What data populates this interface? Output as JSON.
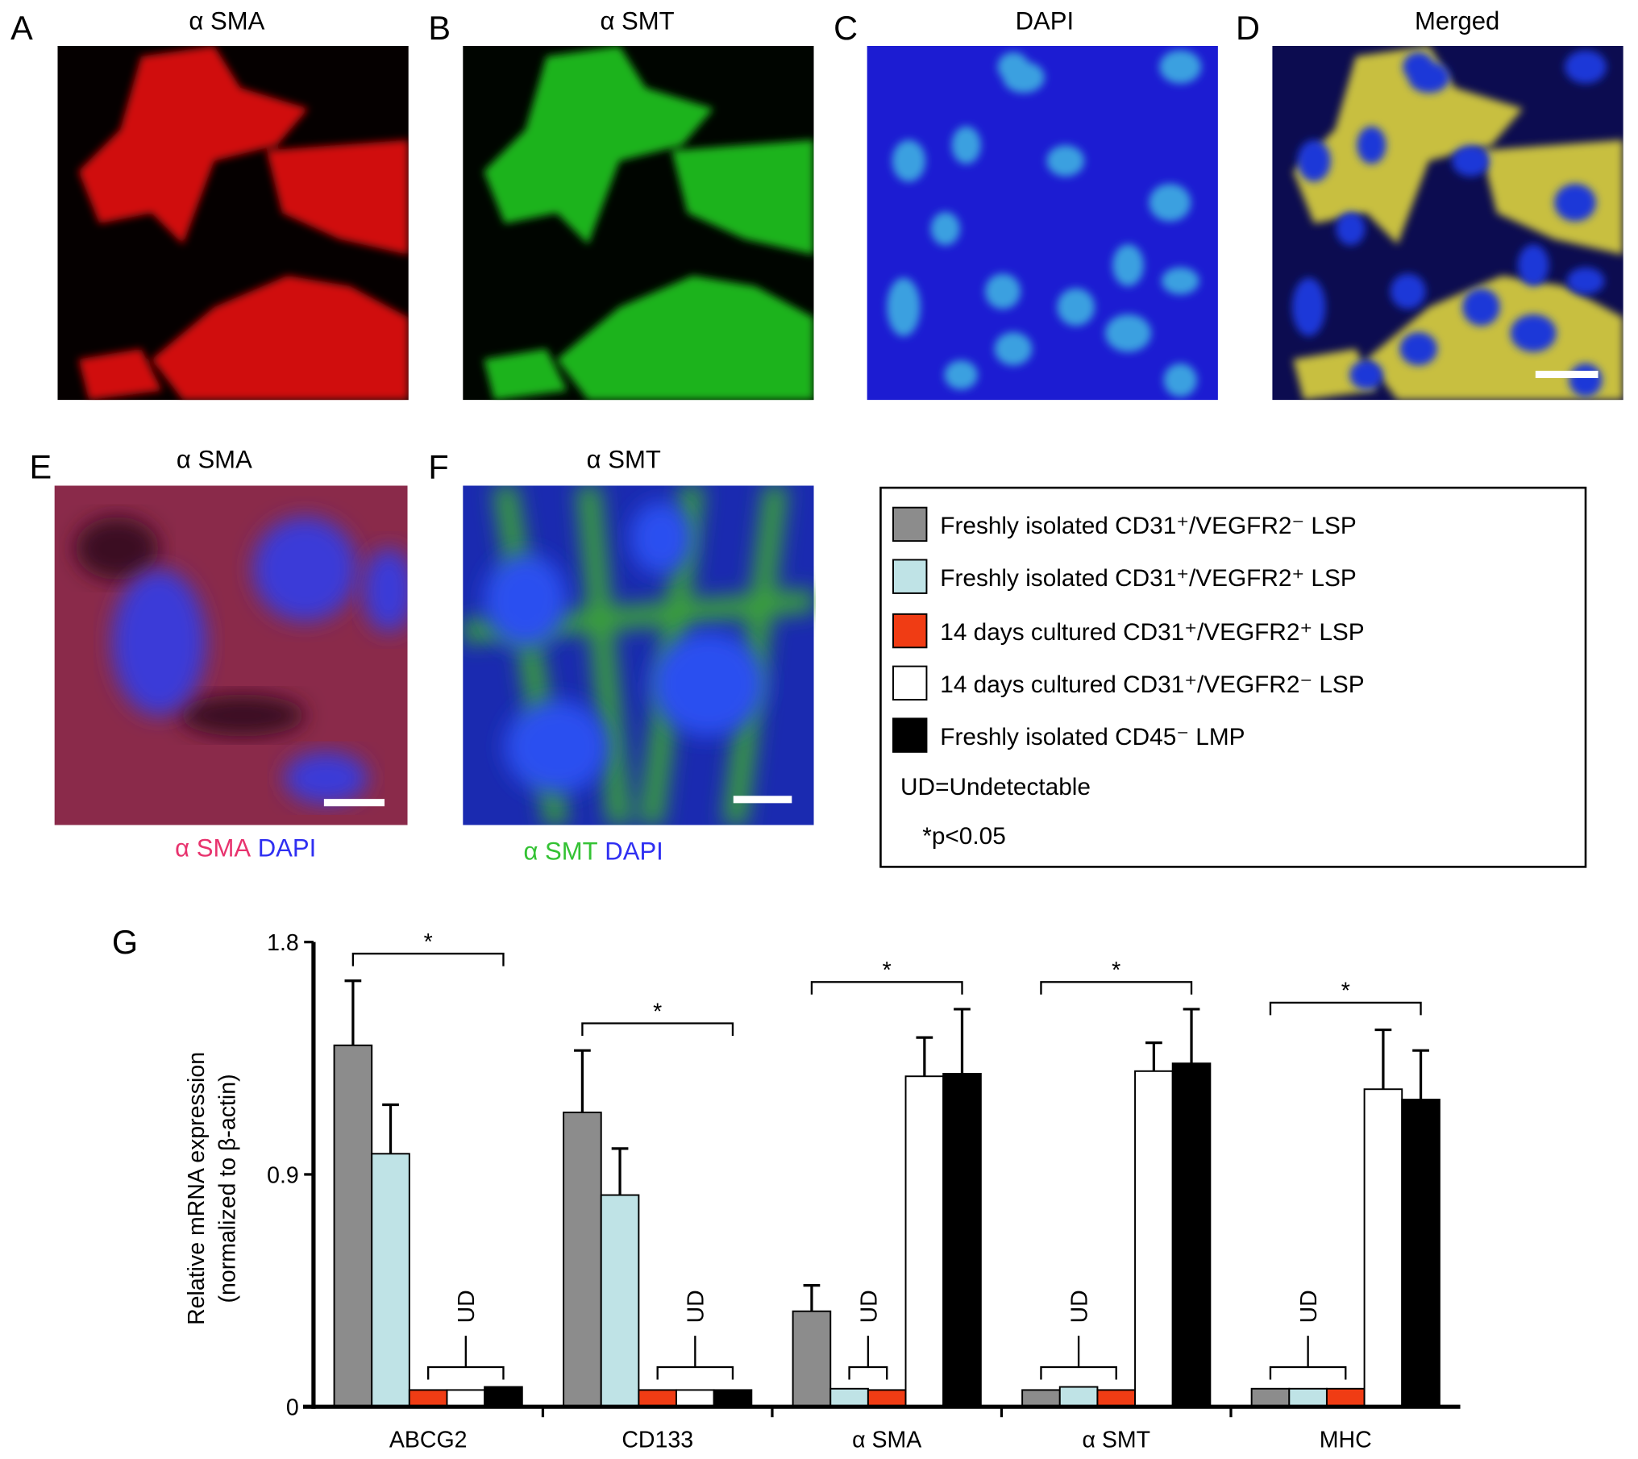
{
  "panels": [
    {
      "letter": "A",
      "title": "α SMA"
    },
    {
      "letter": "B",
      "title": "α SMT"
    },
    {
      "letter": "C",
      "title": "DAPI"
    },
    {
      "letter": "D",
      "title": "Merged"
    },
    {
      "letter": "E",
      "title": "α SMA",
      "caption": [
        {
          "text": "α SMA",
          "color": "#e8336e"
        },
        {
          "text": "DAPI",
          "color": "#2f2ff2"
        }
      ]
    },
    {
      "letter": "F",
      "title": "α SMT",
      "caption": [
        {
          "text": "α SMT",
          "color": "#34c234"
        },
        {
          "text": "DAPI",
          "color": "#2f2ff2"
        }
      ]
    }
  ],
  "chart_data": {
    "type": "bar",
    "panel_label": "G",
    "ylabel": [
      "Relative mRNA expression",
      "(normalized to β-actin)"
    ],
    "categories": [
      "ABCG2",
      "CD133",
      "α SMA",
      "α SMT",
      "MHC"
    ],
    "series": [
      {
        "name": "Freshly isolated CD31⁺/VEGFR2⁻ LSP",
        "color": "#8c8c8c",
        "values": [
          1.4,
          1.14,
          0.37,
          0.065,
          0.07
        ],
        "errors": [
          0.25,
          0.24,
          0.1,
          null,
          null
        ]
      },
      {
        "name": "Freshly isolated CD31⁺/VEGFR2⁺ LSP",
        "color": "#bfe3e6",
        "values": [
          0.98,
          0.82,
          0.07,
          0.077,
          0.07
        ],
        "errors": [
          0.19,
          0.18,
          null,
          null,
          null
        ]
      },
      {
        "name": "14 days cultured CD31⁺/VEGFR2⁺ LSP",
        "color": "#f03c14",
        "values": [
          0.065,
          0.065,
          0.065,
          0.065,
          0.07
        ],
        "errors": [
          null,
          null,
          null,
          null,
          null
        ]
      },
      {
        "name": "14 days cultured CD31⁺/VEGFR2⁻ LSP",
        "color": "#ffffff",
        "values": [
          0.065,
          0.065,
          1.28,
          1.3,
          1.23
        ],
        "errors": [
          null,
          null,
          0.15,
          0.11,
          0.23
        ]
      },
      {
        "name": "Freshly isolated CD45⁻ LMP",
        "color": "#000000",
        "values": [
          0.077,
          0.065,
          1.29,
          1.33,
          1.19
        ],
        "errors": [
          null,
          null,
          0.25,
          0.21,
          0.19
        ]
      }
    ],
    "legend_notes": [
      "UD=Undetectable",
      "*p<0.05"
    ],
    "annotations": {
      "significance": [
        "*",
        "*",
        "*",
        "*",
        "*"
      ],
      "ud": [
        "UD",
        "UD",
        "UD",
        "UD",
        "UD"
      ]
    },
    "ylim": [
      0,
      1.8
    ],
    "yticks": [
      0,
      0.9,
      1.8
    ]
  }
}
